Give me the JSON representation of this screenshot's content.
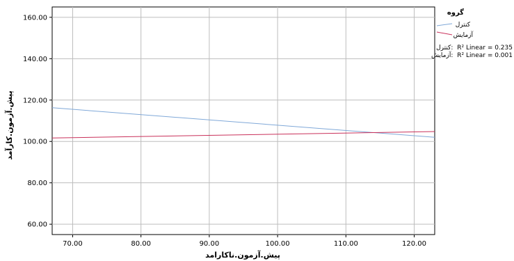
{
  "chart_data": {
    "type": "line",
    "xlabel": "پیش.آزمون.ناکارامد",
    "ylabel": "پیش.آزمون.کارآمد",
    "xlim": [
      67,
      123
    ],
    "ylim": [
      55,
      165
    ],
    "x_ticks": [
      70,
      80,
      90,
      100,
      110,
      120
    ],
    "y_ticks": [
      60,
      80,
      100,
      120,
      140,
      160
    ],
    "x_tick_labels": [
      "70.00",
      "80.00",
      "90.00",
      "100.00",
      "110.00",
      "120.00"
    ],
    "y_tick_labels": [
      "60.00",
      "80.00",
      "100.00",
      "120.00",
      "140.00",
      "160.00"
    ],
    "grid": true,
    "legend_title": "گروه",
    "legend_position": "right",
    "series": [
      {
        "name": "کنترل",
        "color": "#7fa8d8",
        "x": [
          67,
          123
        ],
        "y": [
          116.3,
          102.0
        ]
      },
      {
        "name": "آزمایش",
        "color": "#c9305a",
        "x": [
          67,
          123
        ],
        "y": [
          101.7,
          104.8
        ]
      }
    ],
    "fit_labels": [
      {
        "group": "کنترل:",
        "text": "R² Linear = 0.235"
      },
      {
        "group": "آزمایش:",
        "text": "R² Linear = 0.001"
      }
    ]
  }
}
